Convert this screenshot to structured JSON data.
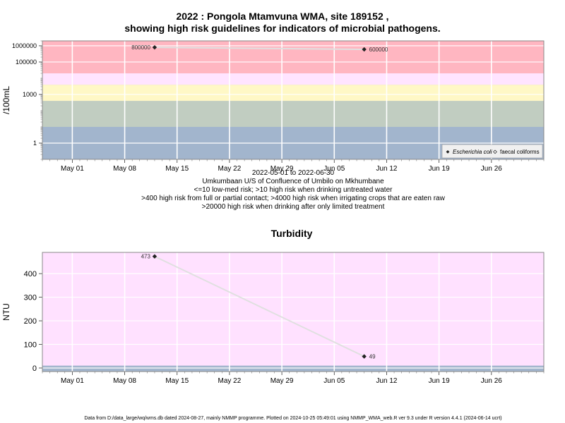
{
  "main_title": {
    "line1": "2022 : Pongola Mtamvuna WMA, site 189152 ,",
    "line2": "showing high risk guidelines for indicators of microbial pathogens."
  },
  "x_axis": {
    "ticks": [
      "May 01",
      "May 08",
      "May 15",
      "May 22",
      "May 29",
      "Jun 05",
      "Jun 12",
      "Jun 19",
      "Jun 26"
    ],
    "tick_dates": [
      "2022-05-01",
      "2022-05-08",
      "2022-05-15",
      "2022-05-22",
      "2022-05-29",
      "2022-06-05",
      "2022-06-12",
      "2022-06-19",
      "2022-06-26"
    ]
  },
  "captions": {
    "date_range": "2022-05-01 to 2022-06-30",
    "site_description": "Umkumbaan U/S of Confluence of Umbilo on Mkhumbane",
    "risk_1": "<=10 low-med risk; >10 high risk when drinking untreated water",
    "risk_2": ">400 high risk from full or partial contact; >4000 high risk when irrigating crops that are eaten raw",
    "risk_3": ">20000 high risk when drinking after only limited treatment"
  },
  "footer": "Data from D:/data_large/wq/wms.db dated 2024-08-27, mainly NMMP programme. Plotted on 2024-10-25 05:49:01 using NMMP_WMA_web.R ver 9.3 under R version 4.4.1 (2024-06-14 ucrt)",
  "colors": {
    "panel_bg": "#a2b5cd",
    "band_low": "#a2b5cd",
    "band_grey": "#c1cdc1",
    "band_yellow": "#fff8c6",
    "band_pink_light": "#ffe4ff",
    "band_pink": "#ffb6c1",
    "turbidity_bg": "#ffe1ff",
    "grid": "#ffffff",
    "line": "#e0e0e0",
    "point": "#222222",
    "frame": "#888888"
  },
  "chart_data": [
    {
      "type": "line",
      "ylabel": "/100mL",
      "y_scale": "log",
      "yticks": [
        "1",
        "1000",
        "100000",
        "1000000"
      ],
      "ylim": [
        0.1,
        2000000
      ],
      "bands": [
        {
          "from": 0.1,
          "to": 10,
          "color": "band_low"
        },
        {
          "from": 10,
          "to": 400,
          "color": "band_grey"
        },
        {
          "from": 400,
          "to": 4000,
          "color": "band_yellow"
        },
        {
          "from": 4000,
          "to": 20000,
          "color": "band_pink_light"
        },
        {
          "from": 20000,
          "to": 2000000,
          "color": "band_pink"
        }
      ],
      "legend_position": "bottom-right",
      "legend": [
        "Escherichia coli",
        "faecal coliforms"
      ],
      "series": [
        {
          "name": "Escherichia coli",
          "x": [
            "2022-05-12",
            "2022-06-09"
          ],
          "y": [
            800000,
            600000
          ],
          "labels": [
            "800000",
            "600000"
          ]
        }
      ]
    },
    {
      "type": "line",
      "title": "Turbidity",
      "ylabel": "NTU",
      "yticks": [
        "0",
        "100",
        "200",
        "300",
        "400"
      ],
      "ylim": [
        -15,
        490
      ],
      "bands": [
        {
          "from": -15,
          "to": 10,
          "color": "band_low"
        },
        {
          "from": 10,
          "to": 490,
          "color": "turbidity_bg"
        }
      ],
      "series": [
        {
          "x": [
            "2022-05-12",
            "2022-06-09"
          ],
          "y": [
            473,
            49
          ],
          "labels": [
            "473",
            "49"
          ]
        }
      ]
    }
  ]
}
